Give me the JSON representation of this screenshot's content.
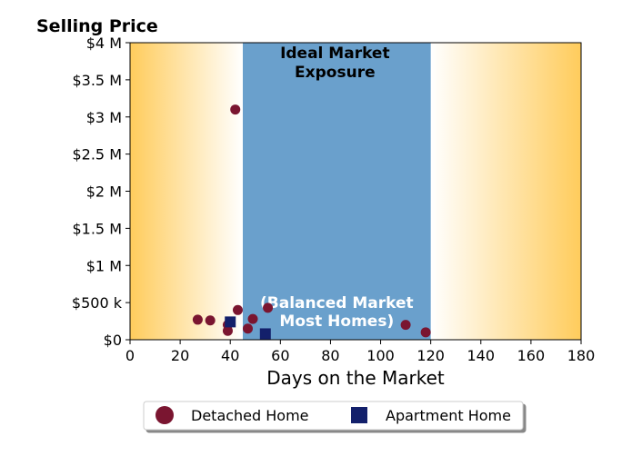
{
  "chart_data": {
    "type": "scatter",
    "title": "Selling Price",
    "xlabel": "Days on the Market",
    "ylabel": "",
    "xlim": [
      0,
      180
    ],
    "ylim": [
      0,
      4000000
    ],
    "x_ticks": [
      0,
      20,
      40,
      60,
      80,
      100,
      120,
      140,
      160,
      180
    ],
    "y_ticks": [
      {
        "value": 0,
        "label": "$0"
      },
      {
        "value": 500000,
        "label": "$500 k"
      },
      {
        "value": 1000000,
        "label": "$1 M"
      },
      {
        "value": 1500000,
        "label": "$1.5 M"
      },
      {
        "value": 2000000,
        "label": "$2 M"
      },
      {
        "value": 2500000,
        "label": "$2.5 M"
      },
      {
        "value": 3000000,
        "label": "$3 M"
      },
      {
        "value": 3500000,
        "label": "$3.5 M"
      },
      {
        "value": 4000000,
        "label": "$4 M"
      }
    ],
    "ideal_band": {
      "x_start": 45,
      "x_end": 120,
      "color": "#6aa0cc"
    },
    "gradient_color": "#ffcc5c",
    "annotations": [
      {
        "text_lines": [
          "Ideal Market",
          "Exposure"
        ],
        "color": "#000000"
      },
      {
        "text_lines": [
          "(Balanced Market",
          "Most Homes)"
        ],
        "color": "#ffffff"
      }
    ],
    "series": [
      {
        "name": "Detached Home",
        "marker": "circle",
        "color": "#7a1530",
        "points": [
          {
            "x": 27,
            "y": 270000
          },
          {
            "x": 32,
            "y": 260000
          },
          {
            "x": 39,
            "y": 120000
          },
          {
            "x": 39,
            "y": 200000
          },
          {
            "x": 42,
            "y": 3100000
          },
          {
            "x": 43,
            "y": 400000
          },
          {
            "x": 47,
            "y": 150000
          },
          {
            "x": 49,
            "y": 280000
          },
          {
            "x": 55,
            "y": 430000
          },
          {
            "x": 110,
            "y": 200000
          },
          {
            "x": 118,
            "y": 100000
          }
        ]
      },
      {
        "name": "Apartment Home",
        "marker": "square",
        "color": "#13206b",
        "points": [
          {
            "x": 40,
            "y": 240000
          },
          {
            "x": 54,
            "y": 80000
          }
        ]
      }
    ],
    "legend_position": "bottom-center",
    "grid": false
  }
}
